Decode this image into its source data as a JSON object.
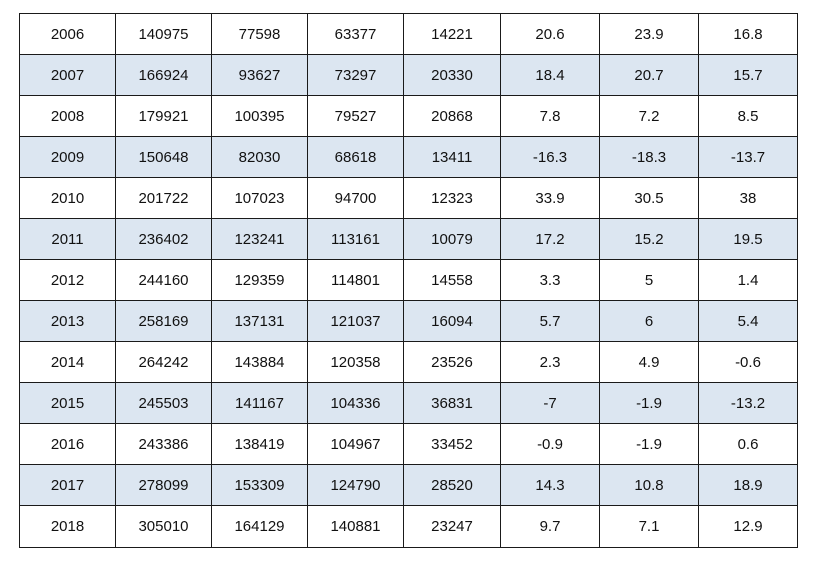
{
  "table": {
    "rows": [
      [
        "2006",
        "140975",
        "77598",
        "63377",
        "14221",
        "20.6",
        "23.9",
        "16.8"
      ],
      [
        "2007",
        "166924",
        "93627",
        "73297",
        "20330",
        "18.4",
        "20.7",
        "15.7"
      ],
      [
        "2008",
        "179921",
        "100395",
        "79527",
        "20868",
        "7.8",
        "7.2",
        "8.5"
      ],
      [
        "2009",
        "150648",
        "82030",
        "68618",
        "13411",
        "-16.3",
        "-18.3",
        "-13.7"
      ],
      [
        "2010",
        "201722",
        "107023",
        "94700",
        "12323",
        "33.9",
        "30.5",
        "38"
      ],
      [
        "2011",
        "236402",
        "123241",
        "113161",
        "10079",
        "17.2",
        "15.2",
        "19.5"
      ],
      [
        "2012",
        "244160",
        "129359",
        "114801",
        "14558",
        "3.3",
        "5",
        "1.4"
      ],
      [
        "2013",
        "258169",
        "137131",
        "121037",
        "16094",
        "5.7",
        "6",
        "5.4"
      ],
      [
        "2014",
        "264242",
        "143884",
        "120358",
        "23526",
        "2.3",
        "4.9",
        "-0.6"
      ],
      [
        "2015",
        "245503",
        "141167",
        "104336",
        "36831",
        "-7",
        "-1.9",
        "-13.2"
      ],
      [
        "2016",
        "243386",
        "138419",
        "104967",
        "33452",
        "-0.9",
        "-1.9",
        "0.6"
      ],
      [
        "2017",
        "278099",
        "153309",
        "124790",
        "28520",
        "14.3",
        "10.8",
        "18.9"
      ],
      [
        "2018",
        "305010",
        "164129",
        "140881",
        "23247",
        "9.7",
        "7.1",
        "12.9"
      ]
    ],
    "colors": {
      "shaded_row": "#dce6f1",
      "plain_row": "#ffffff",
      "border": "#1a1a1a",
      "text": "#111111"
    }
  }
}
